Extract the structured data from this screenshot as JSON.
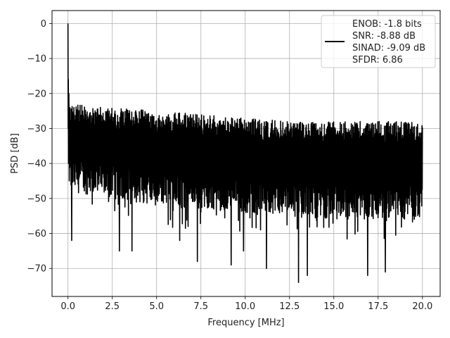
{
  "chart_data": {
    "type": "line",
    "title": "",
    "xlabel": "Frequency [MHz]",
    "ylabel": "PSD [dB]",
    "xlim": [
      -0.9,
      21.0
    ],
    "ylim": [
      -78,
      3.7
    ],
    "grid": true,
    "xticks": [
      0.0,
      2.5,
      5.0,
      7.5,
      10.0,
      12.5,
      15.0,
      17.5,
      20.0
    ],
    "xtick_labels": [
      "0.0",
      "2.5",
      "5.0",
      "7.5",
      "10.0",
      "12.5",
      "15.0",
      "17.5",
      "20.0"
    ],
    "yticks": [
      0,
      -10,
      -20,
      -30,
      -40,
      -50,
      -60,
      -70
    ],
    "ytick_labels": [
      "0",
      "−10",
      "−20",
      "−30",
      "−40",
      "−50",
      "−60",
      "−70"
    ],
    "legend": {
      "placement": "top-right",
      "lines": [
        "ENOB: -1.8 bits",
        "SNR: -8.88 dB",
        "SINAD: -9.09 dB",
        "SFDR: 6.86"
      ]
    },
    "series": [
      {
        "color": "#000000",
        "x_start": 0.0,
        "x_end": 20.0,
        "peak": {
          "x": 0.0,
          "y": 0.0
        },
        "envelope_upper": {
          "x": [
            0.1,
            2.5,
            5.0,
            7.5,
            10.0,
            12.5,
            15.0,
            17.5,
            20.0
          ],
          "y": [
            -23,
            -24,
            -25,
            -26,
            -27,
            -28,
            -28,
            -28,
            -28
          ]
        },
        "envelope_lower": {
          "x": [
            0.1,
            2.5,
            5.0,
            7.5,
            10.0,
            12.5,
            15.0,
            17.5,
            20.0
          ],
          "y": [
            -48,
            -50,
            -52,
            -53,
            -54,
            -55,
            -56,
            -56,
            -56
          ]
        },
        "notable_dips": [
          {
            "x": 0.2,
            "y": -62
          },
          {
            "x": 2.9,
            "y": -65
          },
          {
            "x": 3.6,
            "y": -65
          },
          {
            "x": 6.3,
            "y": -62
          },
          {
            "x": 7.3,
            "y": -68
          },
          {
            "x": 9.2,
            "y": -69
          },
          {
            "x": 9.9,
            "y": -65
          },
          {
            "x": 11.2,
            "y": -70
          },
          {
            "x": 13.0,
            "y": -74
          },
          {
            "x": 13.5,
            "y": -72
          },
          {
            "x": 16.9,
            "y": -72
          },
          {
            "x": 17.9,
            "y": -71
          }
        ]
      }
    ]
  }
}
